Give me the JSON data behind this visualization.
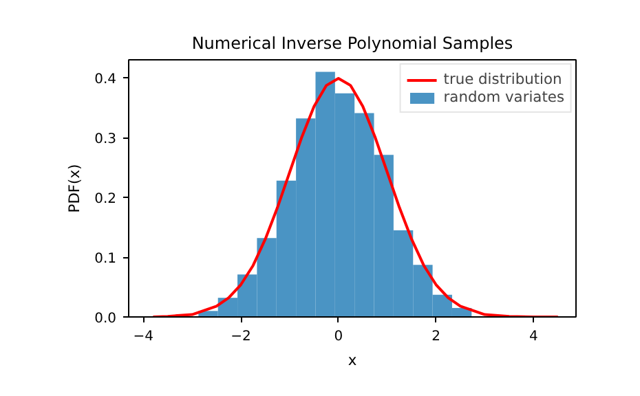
{
  "chart_data": {
    "type": "histogram",
    "title": "Numerical Inverse Polynomial Samples",
    "xlabel": "x",
    "ylabel": "PDF(x)",
    "xlim": [
      -4.3,
      4.87
    ],
    "ylim": [
      0,
      0.43
    ],
    "xticks": [
      {
        "value": -4,
        "label": "−4"
      },
      {
        "value": -2,
        "label": "−2"
      },
      0,
      2,
      4
    ],
    "yticks": [
      {
        "value": 0,
        "label": "0.0"
      },
      0.1,
      0.2,
      0.3,
      0.4
    ],
    "grid": false,
    "legend": "top right",
    "series": [
      {
        "name": "random variates",
        "color": "#4a94c4",
        "bins": [
          -2.87,
          -2.47,
          -2.07,
          -1.67,
          -1.27,
          -0.87,
          -0.47,
          -0.07,
          0.33,
          0.73,
          1.13,
          1.53,
          1.93,
          2.33,
          2.73,
          3.13
        ],
        "values": [
          0.01,
          0.032,
          0.071,
          0.132,
          0.228,
          0.332,
          0.41,
          0.374,
          0.341,
          0.271,
          0.145,
          0.087,
          0.037,
          0.015,
          null
        ]
      },
      {
        "name": "true distribution",
        "type": "line",
        "color": "#ff0000",
        "x": [
          -3.8,
          -3.5,
          -3.0,
          -2.5,
          -2.25,
          -2.0,
          -1.75,
          -1.5,
          -1.25,
          -1.0,
          -0.75,
          -0.5,
          -0.25,
          0,
          0.25,
          0.5,
          0.75,
          1.0,
          1.25,
          1.5,
          1.75,
          2.0,
          2.25,
          2.5,
          3.0,
          3.5,
          4.0,
          4.5
        ],
        "values": [
          0.0,
          0.001,
          0.004,
          0.018,
          0.032,
          0.054,
          0.086,
          0.13,
          0.183,
          0.242,
          0.301,
          0.352,
          0.387,
          0.399,
          0.387,
          0.352,
          0.301,
          0.242,
          0.183,
          0.13,
          0.086,
          0.054,
          0.032,
          0.018,
          0.004,
          0.001,
          0.0,
          0.0
        ]
      }
    ]
  }
}
